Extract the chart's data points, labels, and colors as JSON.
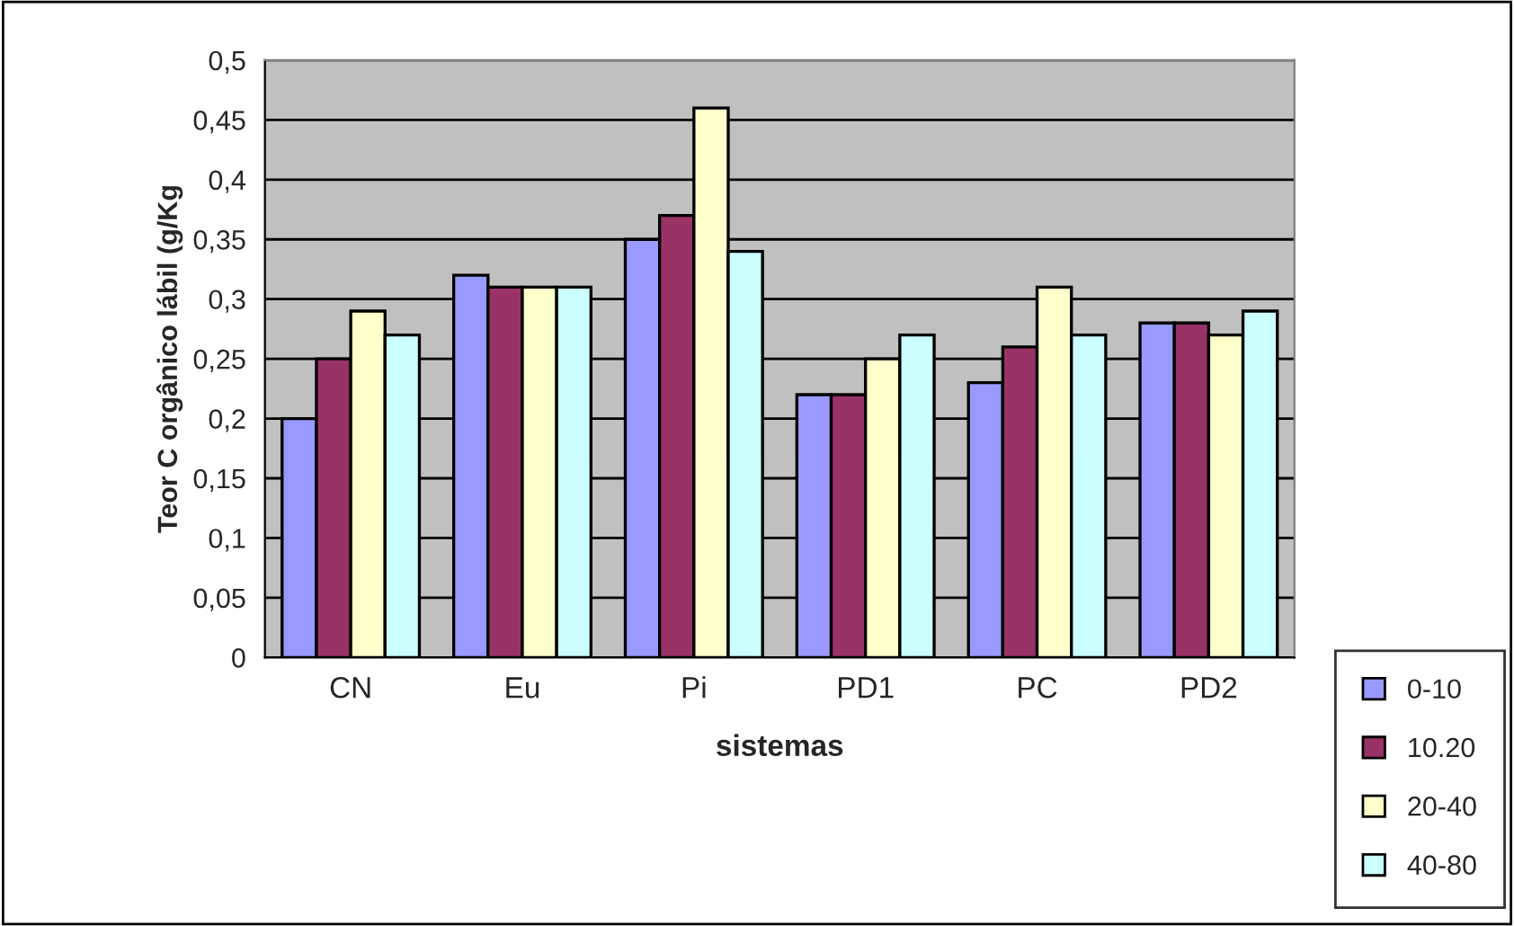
{
  "chart_data": {
    "type": "bar",
    "xlabel": "sistemas",
    "ylabel": "Teor C orgânico lábil (g/Kg",
    "categories": [
      "CN",
      "Eu",
      "Pi",
      "PD1",
      "PC",
      "PD2"
    ],
    "series": [
      {
        "name": "0-10",
        "color": "#9999ff",
        "values": [
          0.2,
          0.32,
          0.35,
          0.22,
          0.23,
          0.28
        ]
      },
      {
        "name": "10.20",
        "color": "#993366",
        "values": [
          0.25,
          0.31,
          0.37,
          0.22,
          0.26,
          0.28
        ]
      },
      {
        "name": "20-40",
        "color": "#ffffcc",
        "values": [
          0.29,
          0.31,
          0.46,
          0.25,
          0.31,
          0.27
        ]
      },
      {
        "name": "40-80",
        "color": "#ccffff",
        "values": [
          0.27,
          0.31,
          0.34,
          0.27,
          0.27,
          0.29
        ]
      }
    ],
    "ylim": [
      0,
      0.5
    ],
    "yticks": [
      0,
      {
        "value": 0.05,
        "label": "0,05"
      },
      {
        "value": 0.1,
        "label": "0,1"
      },
      {
        "value": 0.15,
        "label": "0,15"
      },
      {
        "value": 0.2,
        "label": "0,2"
      },
      {
        "value": 0.25,
        "label": "0,25"
      },
      {
        "value": 0.3,
        "label": "0,3"
      },
      {
        "value": 0.35,
        "label": "0,35"
      },
      {
        "value": 0.4,
        "label": "0,4"
      },
      {
        "value": 0.45,
        "label": "0,45"
      },
      {
        "value": 0.5,
        "label": "0,5"
      }
    ],
    "grid": "y",
    "legend": "bottom right"
  }
}
